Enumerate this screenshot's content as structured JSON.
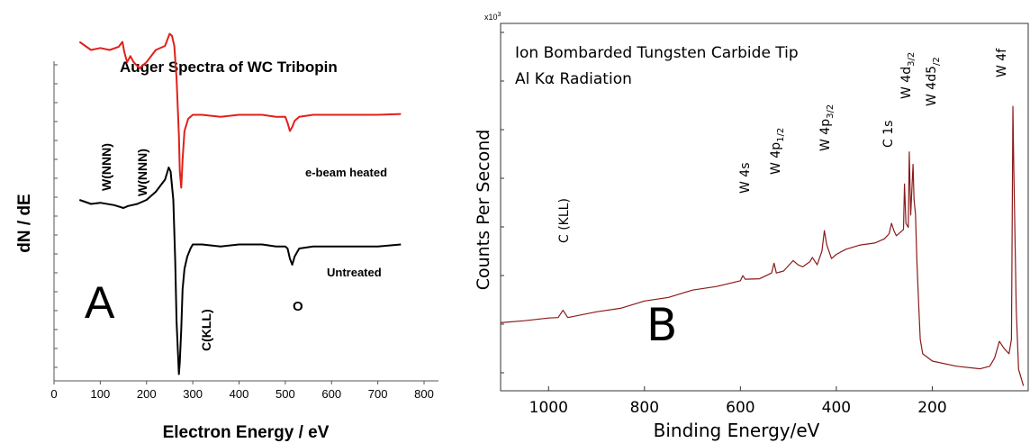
{
  "chart_data": [
    {
      "type": "line",
      "panel_letter": "A",
      "title": "Auger Spectra of WC Tribopin",
      "xlabel": "Electron Energy / eV",
      "ylabel": "dN / dE",
      "xlim": [
        0,
        800
      ],
      "xticks": [
        "0",
        "100",
        "200",
        "300",
        "400",
        "500",
        "600",
        "700",
        "800"
      ],
      "series": [
        {
          "name": "e-beam heated",
          "color": "#e0201b",
          "x": [
            55,
            80,
            100,
            120,
            140,
            148,
            152,
            158,
            165,
            172,
            185,
            200,
            220,
            240,
            250,
            255,
            260,
            265,
            270,
            272,
            275,
            278,
            282,
            290,
            300,
            320,
            360,
            400,
            450,
            480,
            500,
            505,
            510,
            515,
            520,
            530,
            560,
            600,
            650,
            700,
            750
          ],
          "y": [
            0.79,
            0.77,
            0.775,
            0.77,
            0.778,
            0.79,
            0.765,
            0.74,
            0.755,
            0.74,
            0.725,
            0.74,
            0.77,
            0.78,
            0.81,
            0.805,
            0.78,
            0.7,
            0.56,
            0.47,
            0.43,
            0.5,
            0.57,
            0.6,
            0.61,
            0.61,
            0.605,
            0.61,
            0.61,
            0.605,
            0.605,
            0.59,
            0.57,
            0.58,
            0.595,
            0.605,
            0.61,
            0.61,
            0.61,
            0.61,
            0.612
          ]
        },
        {
          "name": "Untreated",
          "color": "#000000",
          "x": [
            55,
            80,
            100,
            130,
            150,
            160,
            180,
            200,
            220,
            240,
            248,
            252,
            258,
            262,
            265,
            268,
            270,
            272,
            275,
            278,
            282,
            288,
            295,
            300,
            320,
            360,
            400,
            450,
            480,
            500,
            505,
            510,
            515,
            520,
            530,
            560,
            600,
            650,
            700,
            750
          ],
          "y": [
            0.4,
            0.39,
            0.393,
            0.387,
            0.38,
            0.385,
            0.39,
            0.4,
            0.42,
            0.45,
            0.48,
            0.47,
            0.4,
            0.25,
            0.1,
            0.02,
            -0.03,
            0.0,
            0.08,
            0.18,
            0.23,
            0.26,
            0.28,
            0.29,
            0.29,
            0.285,
            0.29,
            0.29,
            0.285,
            0.285,
            0.28,
            0.255,
            0.24,
            0.26,
            0.28,
            0.285,
            0.285,
            0.285,
            0.285,
            0.29
          ]
        }
      ],
      "annotations": [
        "W(NNN)",
        "W(NNN)",
        "C(KLL)",
        "O"
      ],
      "grid": false
    },
    {
      "type": "line",
      "panel_letter": "B",
      "title": "Ion Bombarded Tungsten Carbide Tip",
      "subtitle": "Al Kα Radiation",
      "xlabel": "Binding Energy/eV",
      "ylabel": "Counts Per Second",
      "y_multiplier": "x10",
      "y_multiplier_exp": "3",
      "xlim": [
        1100,
        0
      ],
      "xticks": [
        "1000",
        "800",
        "600",
        "400",
        "200"
      ],
      "series": [
        {
          "name": "",
          "color": "#8b1a1a",
          "x": [
            1100,
            1050,
            1000,
            980,
            970,
            960,
            900,
            850,
            800,
            750,
            700,
            650,
            600,
            595,
            590,
            560,
            535,
            530,
            525,
            510,
            490,
            480,
            470,
            455,
            450,
            440,
            430,
            425,
            420,
            410,
            400,
            380,
            350,
            320,
            300,
            290,
            285,
            280,
            275,
            270,
            260,
            258,
            255,
            250,
            248,
            245,
            240,
            238,
            235,
            232,
            228,
            225,
            220,
            200,
            150,
            100,
            80,
            70,
            60,
            50,
            40,
            35,
            33,
            32,
            30,
            25,
            20,
            10
          ],
          "y": [
            0.2,
            0.21,
            0.215,
            0.22,
            0.24,
            0.22,
            0.235,
            0.25,
            0.27,
            0.285,
            0.305,
            0.32,
            0.335,
            0.355,
            0.34,
            0.345,
            0.36,
            0.395,
            0.36,
            0.37,
            0.4,
            0.39,
            0.38,
            0.4,
            0.41,
            0.39,
            0.43,
            0.5,
            0.45,
            0.41,
            0.42,
            0.44,
            0.45,
            0.46,
            0.47,
            0.49,
            0.52,
            0.5,
            0.48,
            0.49,
            0.5,
            0.65,
            0.52,
            0.51,
            0.75,
            0.55,
            0.71,
            0.6,
            0.55,
            0.4,
            0.25,
            0.15,
            0.1,
            0.08,
            0.06,
            0.055,
            0.06,
            0.09,
            0.14,
            0.12,
            0.1,
            0.15,
            0.6,
            0.9,
            0.7,
            0.25,
            0.05,
            0.0
          ]
        }
      ],
      "annotations": [
        "C (KLL)",
        "W 4s",
        "W 4p1/2",
        "W 4p3/2",
        "C 1s",
        "W 4d3/2",
        "W 4d5/2",
        "W 4f"
      ],
      "grid": false
    }
  ]
}
